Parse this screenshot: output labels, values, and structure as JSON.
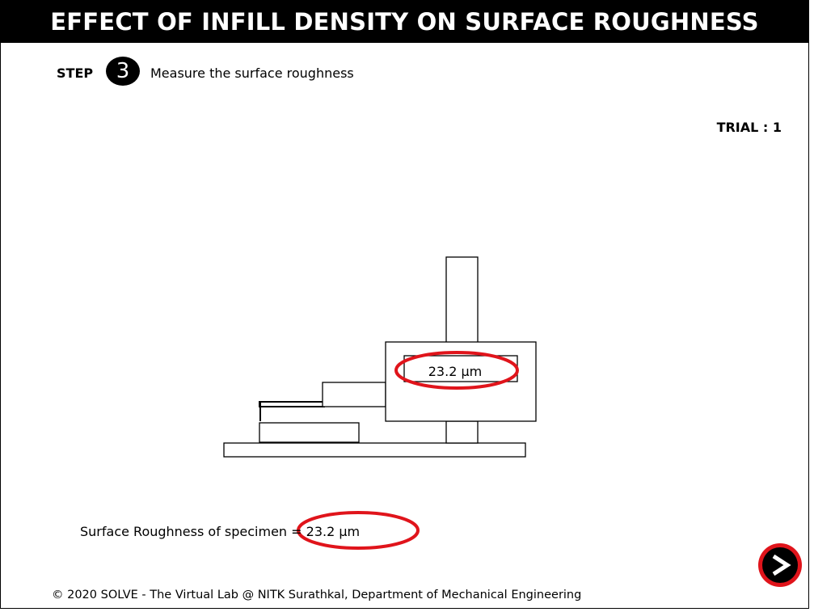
{
  "title": "EFFECT OF INFILL DENSITY ON SURFACE ROUGHNESS",
  "step": {
    "label": "STEP",
    "number": "3",
    "instruction": "Measure the surface roughness"
  },
  "trial_label": "TRIAL : 1",
  "instrument": {
    "display_value": "23.2 µm"
  },
  "result_text": "Surface Roughness of specimen = 23.2 µm",
  "footer": "© 2020 SOLVE - The Virtual Lab @ NITK Surathkal, Department of Mechanical Engineering",
  "next_button": {
    "icon": "arrow-right-icon"
  },
  "colors": {
    "title_bg": "#000000",
    "highlight": "#e0141b",
    "background": "#ffffff"
  }
}
